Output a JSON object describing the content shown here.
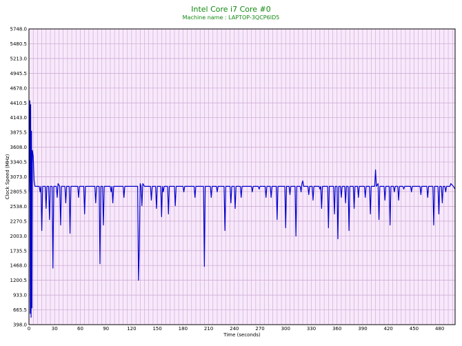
{
  "header": {
    "title": "Intel Core i7 Core #0",
    "subtitle": "Machine name : LAPTOP-3QCP6ID5"
  },
  "colors": {
    "plot_bg": "#f8e8fb",
    "grid": "#c9a6cf",
    "line": "#0000cc",
    "title": "#118811"
  },
  "chart_data": {
    "type": "line",
    "title": "Intel Core i7 Core #0",
    "subtitle": "Machine name : LAPTOP-3QCP6ID5",
    "xlabel": "Time (seconds)",
    "ylabel": "Clock Speed (MHz)",
    "xlim": [
      0,
      498
    ],
    "ylim": [
      398.0,
      5748.0
    ],
    "grid": true,
    "xticks": [
      "0",
      "30",
      "60",
      "90",
      "120",
      "150",
      "180",
      "210",
      "240",
      "270",
      "300",
      "330",
      "360",
      "390",
      "420",
      "450",
      "480"
    ],
    "yticks": [
      "398.0",
      "665.5",
      "933.0",
      "1200.5",
      "1468.0",
      "1735.5",
      "2003.0",
      "2270.5",
      "2538.0",
      "2805.5",
      "3073.0",
      "3340.5",
      "3608.0",
      "3875.5",
      "4143.0",
      "4410.5",
      "4678.0",
      "4945.5",
      "5213.0",
      "5480.5",
      "5748.0"
    ],
    "baseline": 2900,
    "series": [
      {
        "values_desc": "baseline with dips",
        "points": [
          [
            0,
            2800
          ],
          [
            1,
            4450
          ],
          [
            1.5,
            600
          ],
          [
            2,
            4380
          ],
          [
            2.5,
            530
          ],
          [
            3,
            3900
          ],
          [
            3.5,
            700
          ],
          [
            4,
            3550
          ],
          [
            5,
            3450
          ],
          [
            6,
            3000
          ],
          [
            7,
            2900
          ],
          [
            12,
            2900
          ],
          [
            13,
            2800
          ],
          [
            14,
            2900
          ],
          [
            15,
            2100
          ],
          [
            16,
            2900
          ],
          [
            19,
            2900
          ],
          [
            20,
            2500
          ],
          [
            21,
            2900
          ],
          [
            23,
            2900
          ],
          [
            24,
            2300
          ],
          [
            25,
            2900
          ],
          [
            27,
            2900
          ],
          [
            28,
            1420
          ],
          [
            29,
            2900
          ],
          [
            32,
            2900
          ],
          [
            33,
            2700
          ],
          [
            34,
            2950
          ],
          [
            36,
            2900
          ],
          [
            37,
            2200
          ],
          [
            38,
            2900
          ],
          [
            42,
            2900
          ],
          [
            43,
            2600
          ],
          [
            44,
            2900
          ],
          [
            47,
            2900
          ],
          [
            48,
            2050
          ],
          [
            49,
            2900
          ],
          [
            57,
            2900
          ],
          [
            58,
            2700
          ],
          [
            59,
            2900
          ],
          [
            64,
            2900
          ],
          [
            65,
            2400
          ],
          [
            66,
            2900
          ],
          [
            77,
            2900
          ],
          [
            78,
            2600
          ],
          [
            79,
            2900
          ],
          [
            82,
            2900
          ],
          [
            83,
            1500
          ],
          [
            84,
            2900
          ],
          [
            86,
            2900
          ],
          [
            87,
            2200
          ],
          [
            88,
            2900
          ],
          [
            95,
            2900
          ],
          [
            96,
            2800
          ],
          [
            97,
            2900
          ],
          [
            98,
            2600
          ],
          [
            99,
            2900
          ],
          [
            110,
            2900
          ],
          [
            111,
            2700
          ],
          [
            112,
            2900
          ],
          [
            127,
            2900
          ],
          [
            128,
            1200
          ],
          [
            129,
            1800
          ],
          [
            130,
            2950
          ],
          [
            131,
            2900
          ],
          [
            132,
            2550
          ],
          [
            133,
            2950
          ],
          [
            135,
            2900
          ],
          [
            142,
            2900
          ],
          [
            143,
            2650
          ],
          [
            144,
            2900
          ],
          [
            148,
            2900
          ],
          [
            149,
            2500
          ],
          [
            150,
            2900
          ],
          [
            154,
            2900
          ],
          [
            155,
            2350
          ],
          [
            156,
            2900
          ],
          [
            157,
            2800
          ],
          [
            158,
            2900
          ],
          [
            162,
            2900
          ],
          [
            163,
            2400
          ],
          [
            164,
            2900
          ],
          [
            170,
            2900
          ],
          [
            171,
            2550
          ],
          [
            172,
            2900
          ],
          [
            180,
            2900
          ],
          [
            181,
            2800
          ],
          [
            182,
            2900
          ],
          [
            193,
            2900
          ],
          [
            194,
            2700
          ],
          [
            195,
            2900
          ],
          [
            203,
            2900
          ],
          [
            204,
            2900
          ],
          [
            205,
            1450
          ],
          [
            206,
            2900
          ],
          [
            212,
            2900
          ],
          [
            213,
            2700
          ],
          [
            214,
            2900
          ],
          [
            219,
            2900
          ],
          [
            220,
            2800
          ],
          [
            221,
            2900
          ],
          [
            228,
            2900
          ],
          [
            229,
            2100
          ],
          [
            230,
            2900
          ],
          [
            235,
            2900
          ],
          [
            236,
            2600
          ],
          [
            237,
            2900
          ],
          [
            240,
            2900
          ],
          [
            241,
            2500
          ],
          [
            242,
            2900
          ],
          [
            247,
            2900
          ],
          [
            248,
            2700
          ],
          [
            249,
            2900
          ],
          [
            260,
            2900
          ],
          [
            261,
            2800
          ],
          [
            262,
            2900
          ],
          [
            268,
            2900
          ],
          [
            269,
            2850
          ],
          [
            270,
            2900
          ],
          [
            276,
            2900
          ],
          [
            277,
            2700
          ],
          [
            278,
            2900
          ],
          [
            282,
            2900
          ],
          [
            283,
            2700
          ],
          [
            284,
            2900
          ],
          [
            289,
            2900
          ],
          [
            290,
            2300
          ],
          [
            291,
            2900
          ],
          [
            299,
            2900
          ],
          [
            300,
            2150
          ],
          [
            301,
            2900
          ],
          [
            304,
            2900
          ],
          [
            305,
            2750
          ],
          [
            306,
            2900
          ],
          [
            311,
            2900
          ],
          [
            312,
            2000
          ],
          [
            313,
            2900
          ],
          [
            317,
            2900
          ],
          [
            318,
            2800
          ],
          [
            319,
            2950
          ],
          [
            320,
            3000
          ],
          [
            321,
            2900
          ],
          [
            326,
            2900
          ],
          [
            327,
            2750
          ],
          [
            328,
            2900
          ],
          [
            331,
            2900
          ],
          [
            332,
            2650
          ],
          [
            333,
            2900
          ],
          [
            339,
            2900
          ],
          [
            340,
            2850
          ],
          [
            341,
            2900
          ],
          [
            342,
            2500
          ],
          [
            343,
            2900
          ],
          [
            349,
            2900
          ],
          [
            350,
            2150
          ],
          [
            351,
            2900
          ],
          [
            356,
            2900
          ],
          [
            357,
            2400
          ],
          [
            358,
            2900
          ],
          [
            360,
            2900
          ],
          [
            361,
            1950
          ],
          [
            362,
            2900
          ],
          [
            364,
            2900
          ],
          [
            365,
            2700
          ],
          [
            366,
            2900
          ],
          [
            369,
            2900
          ],
          [
            370,
            2600
          ],
          [
            371,
            2900
          ],
          [
            373,
            2900
          ],
          [
            374,
            2100
          ],
          [
            375,
            2900
          ],
          [
            379,
            2900
          ],
          [
            380,
            2500
          ],
          [
            381,
            2900
          ],
          [
            384,
            2900
          ],
          [
            385,
            2700
          ],
          [
            386,
            2900
          ],
          [
            392,
            2900
          ],
          [
            393,
            2700
          ],
          [
            394,
            2900
          ],
          [
            398,
            2900
          ],
          [
            399,
            2400
          ],
          [
            400,
            2900
          ],
          [
            404,
            2900
          ],
          [
            405,
            3200
          ],
          [
            406,
            2900
          ],
          [
            408,
            2950
          ],
          [
            409,
            2300
          ],
          [
            410,
            2900
          ],
          [
            415,
            2900
          ],
          [
            416,
            2650
          ],
          [
            417,
            2900
          ],
          [
            421,
            2900
          ],
          [
            422,
            2200
          ],
          [
            423,
            2900
          ],
          [
            426,
            2900
          ],
          [
            427,
            2800
          ],
          [
            428,
            2900
          ],
          [
            431,
            2900
          ],
          [
            432,
            2650
          ],
          [
            433,
            2900
          ],
          [
            437,
            2900
          ],
          [
            438,
            2850
          ],
          [
            439,
            2900
          ],
          [
            446,
            2900
          ],
          [
            447,
            2800
          ],
          [
            448,
            2900
          ],
          [
            457,
            2900
          ],
          [
            458,
            2750
          ],
          [
            459,
            2900
          ],
          [
            465,
            2900
          ],
          [
            466,
            2700
          ],
          [
            467,
            2900
          ],
          [
            472,
            2900
          ],
          [
            473,
            2200
          ],
          [
            474,
            2900
          ],
          [
            478,
            2900
          ],
          [
            479,
            2400
          ],
          [
            480,
            2900
          ],
          [
            482,
            2900
          ],
          [
            483,
            2600
          ],
          [
            484,
            2900
          ],
          [
            486,
            2900
          ],
          [
            487,
            2800
          ],
          [
            488,
            2900
          ],
          [
            492,
            2900
          ],
          [
            493,
            2950
          ],
          [
            496,
            2900
          ],
          [
            498,
            2850
          ]
        ]
      }
    ]
  }
}
